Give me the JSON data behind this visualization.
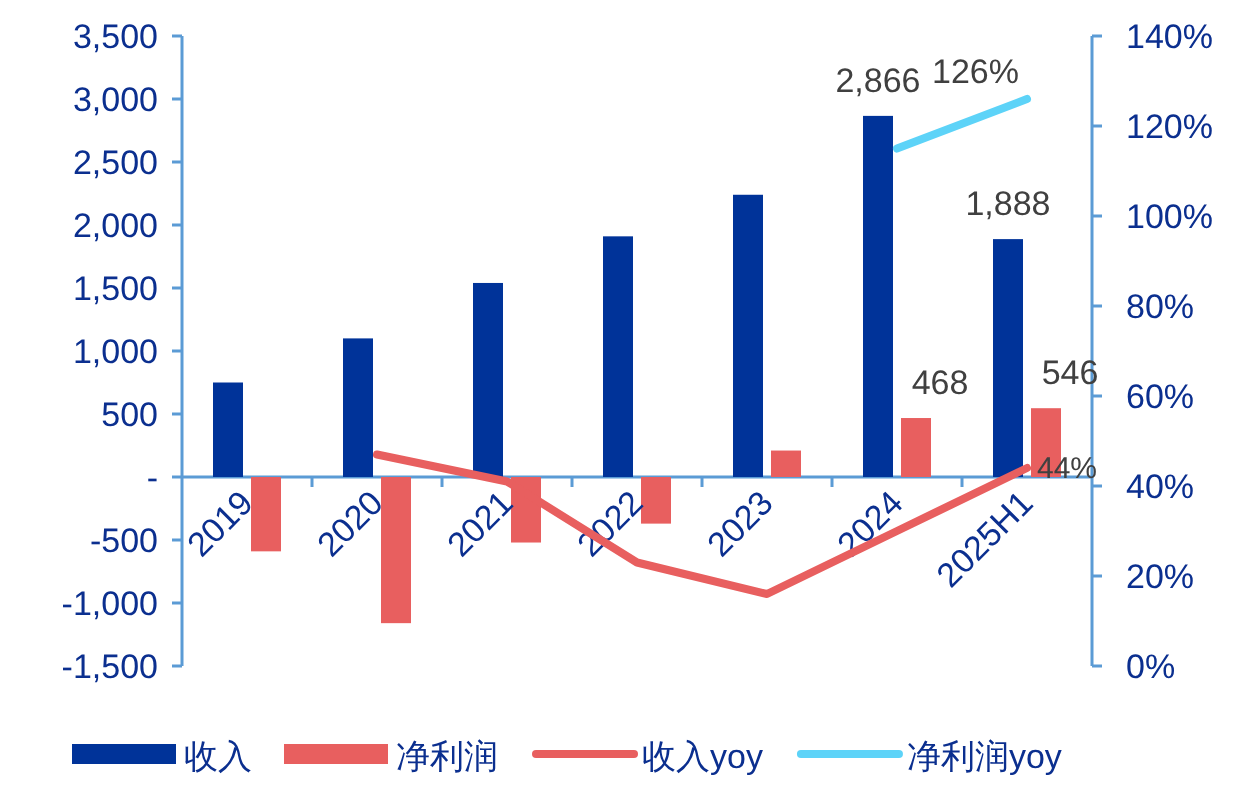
{
  "chart_data": {
    "type": "bar",
    "categories": [
      "2019",
      "2020",
      "2021",
      "2022",
      "2023",
      "2024",
      "2025H1"
    ],
    "series": [
      {
        "name": "收入",
        "color": "#003399",
        "values": [
          750,
          1100,
          1540,
          1910,
          2240,
          2866,
          1888
        ],
        "value_labels": [
          null,
          null,
          null,
          null,
          null,
          "2,866",
          "1,888"
        ]
      },
      {
        "name": "净利润",
        "color": "#e85f5f",
        "values": [
          -590,
          -1160,
          -520,
          -370,
          210,
          468,
          546
        ],
        "value_labels": [
          null,
          null,
          null,
          null,
          null,
          "468",
          "546"
        ]
      },
      {
        "name": "收入yoy",
        "type": "line",
        "axis": "y2",
        "color": "#e85f5f",
        "values": [
          null,
          47,
          41,
          23,
          16,
          30,
          44
        ],
        "value_labels": [
          null,
          null,
          null,
          null,
          null,
          null,
          "44%"
        ]
      },
      {
        "name": "净利润yoy",
        "type": "line",
        "axis": "y2",
        "color": "#5dd3f8",
        "values": [
          null,
          null,
          null,
          null,
          null,
          115,
          126
        ],
        "value_labels": [
          null,
          null,
          null,
          null,
          null,
          null,
          "126%"
        ]
      }
    ],
    "ylim": [
      -1500,
      3500
    ],
    "yticks": [
      {
        "value": -1500,
        "label": "-1,500"
      },
      {
        "value": -1000,
        "label": "-1,000"
      },
      -500,
      {
        "value": 0,
        "label": "-"
      },
      500,
      {
        "value": 1000,
        "label": "1,000"
      },
      {
        "value": 1500,
        "label": "1,500"
      },
      {
        "value": 2000,
        "label": "2,000"
      },
      {
        "value": 2500,
        "label": "2,500"
      },
      {
        "value": 3000,
        "label": "3,000"
      },
      {
        "value": 3500,
        "label": "3,500"
      }
    ],
    "y2lim": [
      0,
      140
    ],
    "y2ticks": [
      {
        "value": 0,
        "label": "0%"
      },
      {
        "value": 20,
        "label": "20%"
      },
      {
        "value": 40,
        "label": "40%"
      },
      {
        "value": 60,
        "label": "60%"
      },
      {
        "value": 80,
        "label": "80%"
      },
      {
        "value": 100,
        "label": "100%"
      },
      {
        "value": 120,
        "label": "120%"
      },
      {
        "value": 140,
        "label": "140%"
      }
    ],
    "legend": "bottom"
  }
}
